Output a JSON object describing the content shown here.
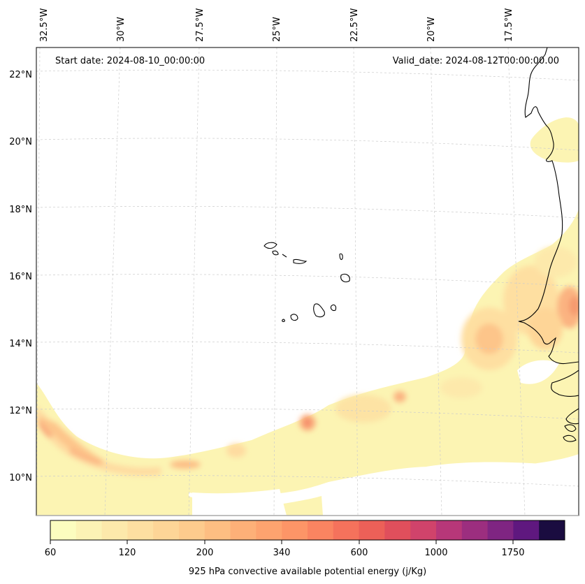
{
  "header": {
    "start_date": "Start date: 2024-08-10_00:00:00",
    "valid_date": "Valid_date: 2024-08-12T00:00:00.00"
  },
  "axes": {
    "longitude_labels": [
      "32.5°W",
      "30°W",
      "27.5°W",
      "25°W",
      "22.5°W",
      "20°W",
      "17.5°W"
    ],
    "latitude_labels": [
      "22°N",
      "20°N",
      "18°N",
      "16°N",
      "14°N",
      "12°N",
      "10°N"
    ]
  },
  "colorbar": {
    "label": "925 hPa convective available potential energy (j/Kg)",
    "tick_labels": [
      "60",
      "120",
      "200",
      "340",
      "600",
      "1000",
      "1750"
    ],
    "colors": [
      "#fcfdbf",
      "#fcf3b5",
      "#fde9ab",
      "#fedfa1",
      "#fed597",
      "#fecb8d",
      "#febe82",
      "#feb078",
      "#fea36f",
      "#fd9567",
      "#fa8461",
      "#f5725c",
      "#ec6058",
      "#e04f5c",
      "#d0436b",
      "#b73779",
      "#9c2e7f",
      "#7f2582",
      "#5f187f",
      "#1a0c40"
    ]
  },
  "colors": {
    "coastline": "#000000",
    "gridline": "#cccccc",
    "background": "#ffffff"
  }
}
